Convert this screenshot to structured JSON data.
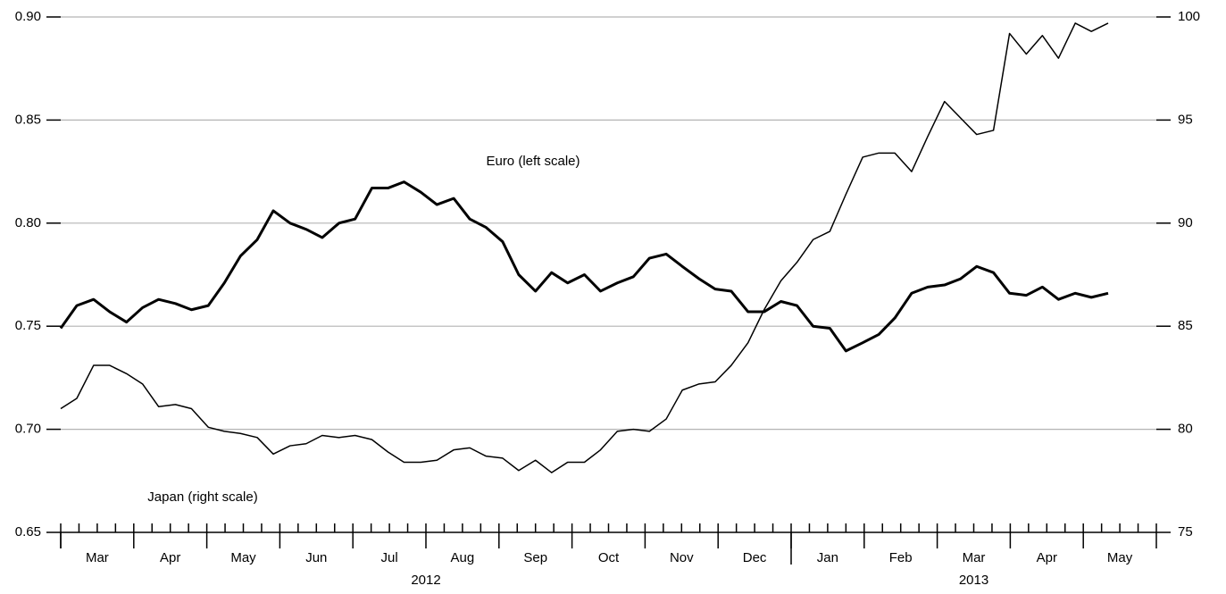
{
  "chart_data": {
    "type": "line",
    "xlim": [
      0,
      15
    ],
    "xticks": [
      {
        "value": 0.5,
        "label": "Mar"
      },
      {
        "value": 1.5,
        "label": "Apr"
      },
      {
        "value": 2.5,
        "label": "May"
      },
      {
        "value": 3.5,
        "label": "Jun"
      },
      {
        "value": 4.5,
        "label": "Jul"
      },
      {
        "value": 5.5,
        "label": "Aug"
      },
      {
        "value": 6.5,
        "label": "Sep"
      },
      {
        "value": 7.5,
        "label": "Oct"
      },
      {
        "value": 8.5,
        "label": "Nov"
      },
      {
        "value": 9.5,
        "label": "Dec"
      },
      {
        "value": 10.5,
        "label": "Jan"
      },
      {
        "value": 11.5,
        "label": "Feb"
      },
      {
        "value": 12.5,
        "label": "Mar"
      },
      {
        "value": 13.5,
        "label": "Apr"
      },
      {
        "value": 14.5,
        "label": "May"
      }
    ],
    "x_groups": [
      {
        "label": "2012",
        "range": [
          0,
          10
        ]
      },
      {
        "label": "2013",
        "range": [
          10,
          15
        ]
      }
    ],
    "ylim": [
      0.65,
      0.9
    ],
    "yticks": [
      0.65,
      {
        "value": 0.7,
        "label": "0.70"
      },
      0.75,
      {
        "value": 0.8,
        "label": "0.80"
      },
      0.85,
      {
        "value": 0.9,
        "label": "0.90"
      }
    ],
    "y2lim": [
      75,
      100
    ],
    "y2ticks": [
      75,
      80,
      85,
      90,
      95,
      100
    ],
    "grid": true,
    "annotations": [
      "Euro (left scale)",
      "Japan (right scale)"
    ],
    "x": [
      0,
      0.22,
      0.45,
      0.67,
      0.9,
      1.12,
      1.34,
      1.57,
      1.79,
      2.02,
      2.24,
      2.46,
      2.69,
      2.91,
      3.14,
      3.36,
      3.58,
      3.81,
      4.03,
      4.26,
      4.48,
      4.7,
      4.93,
      5.15,
      5.38,
      5.6,
      5.82,
      6.05,
      6.27,
      6.5,
      6.72,
      6.94,
      7.17,
      7.39,
      7.62,
      7.84,
      8.06,
      8.29,
      8.51,
      8.74,
      8.96,
      9.18,
      9.41,
      9.63,
      9.86,
      10.08,
      10.3,
      10.53,
      10.75,
      10.98,
      11.2,
      11.42,
      11.65,
      11.87,
      12.1,
      12.32,
      12.54,
      12.77,
      12.99,
      13.22,
      13.44,
      13.66,
      13.89,
      14.11,
      14.34
    ],
    "series": [
      {
        "name": "Euro",
        "axis": "y",
        "color": "#000000",
        "width": 3,
        "values": [
          0.749,
          0.76,
          0.763,
          0.757,
          0.752,
          0.759,
          0.763,
          0.761,
          0.758,
          0.76,
          0.771,
          0.784,
          0.792,
          0.806,
          0.8,
          0.797,
          0.793,
          0.8,
          0.802,
          0.817,
          0.817,
          0.82,
          0.815,
          0.809,
          0.812,
          0.802,
          0.798,
          0.791,
          0.775,
          0.767,
          0.776,
          0.771,
          0.775,
          0.767,
          0.771,
          0.774,
          0.783,
          0.785,
          0.779,
          0.773,
          0.768,
          0.767,
          0.757,
          0.757,
          0.762,
          0.76,
          0.75,
          0.749,
          0.738,
          0.742,
          0.746,
          0.754,
          0.766,
          0.769,
          0.77,
          0.773,
          0.779,
          0.776,
          0.766,
          0.765,
          0.769,
          0.763,
          0.766,
          0.764,
          0.766
        ]
      },
      {
        "name": "Japan",
        "axis": "y2",
        "color": "#000000",
        "width": 1.5,
        "values": [
          81.0,
          81.5,
          83.1,
          83.1,
          82.7,
          82.2,
          81.1,
          81.2,
          81.0,
          80.1,
          79.9,
          79.8,
          79.6,
          78.8,
          79.2,
          79.3,
          79.7,
          79.6,
          79.7,
          79.5,
          78.9,
          78.4,
          78.4,
          78.5,
          79.0,
          79.1,
          78.7,
          78.6,
          78.0,
          78.5,
          77.9,
          78.4,
          78.4,
          79.0,
          79.9,
          80.0,
          79.9,
          80.5,
          81.9,
          82.2,
          82.3,
          83.1,
          84.2,
          85.8,
          87.2,
          88.1,
          89.2,
          89.6,
          91.4,
          93.2,
          93.4,
          93.4,
          92.5,
          94.2,
          95.9,
          95.1,
          94.3,
          94.5,
          99.2,
          98.2,
          99.1,
          98.0,
          99.7,
          99.3,
          99.7
        ]
      }
    ]
  }
}
